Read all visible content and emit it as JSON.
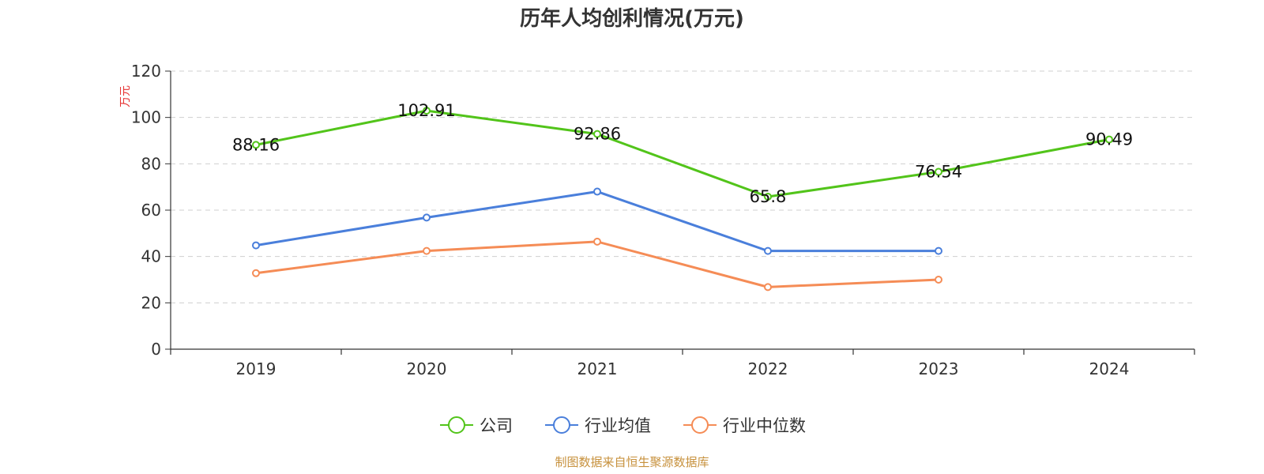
{
  "chart_data": {
    "type": "line",
    "title": "历年人均创利情况(万元)",
    "ylabel": "万元",
    "xlabel": "",
    "categories": [
      "2019",
      "2020",
      "2021",
      "2022",
      "2023",
      "2024"
    ],
    "ylim": [
      0,
      120
    ],
    "yticks": [
      0,
      20,
      40,
      60,
      80,
      100,
      120
    ],
    "grid": true,
    "legend_position": "bottom-center",
    "series": [
      {
        "name": "公司",
        "color": "#52c41a",
        "values": [
          88.16,
          102.91,
          92.86,
          65.8,
          76.54,
          90.49
        ],
        "labels": [
          "88.16",
          "102.91",
          "92.86",
          "65.8",
          "76.54",
          "90.49"
        ]
      },
      {
        "name": "行业均值",
        "color": "#4a7fdb",
        "values": [
          44.8,
          56.8,
          68.0,
          42.4,
          42.4,
          null
        ]
      },
      {
        "name": "行业中位数",
        "color": "#f58c56",
        "values": [
          32.8,
          42.4,
          46.4,
          26.8,
          30.0,
          null
        ]
      }
    ]
  },
  "footer": "制图数据来自恒生聚源数据库"
}
